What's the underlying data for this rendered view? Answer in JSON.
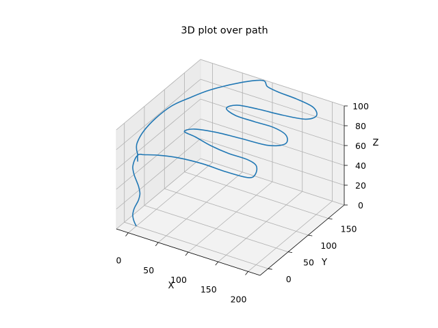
{
  "chart_data": {
    "type": "line",
    "title": "3D plot over path",
    "xlabel": "X",
    "ylabel": "Y",
    "zlabel": "Z",
    "xlim": [
      -20,
      220
    ],
    "ylim": [
      -20,
      190
    ],
    "zlim": [
      0,
      100
    ],
    "x_ticks": [
      0,
      50,
      100,
      150,
      200
    ],
    "y_ticks": [
      0,
      50,
      100,
      150
    ],
    "z_ticks": [
      0,
      20,
      40,
      60,
      80,
      100
    ],
    "grid": true,
    "series": [
      {
        "color": "#1f77b4",
        "points": [
          [
            0,
            0,
            0
          ],
          [
            -3,
            0,
            3
          ],
          [
            -5,
            0,
            6
          ],
          [
            -6,
            0,
            10
          ],
          [
            -5,
            0,
            14
          ],
          [
            -3,
            0,
            18
          ],
          [
            0,
            0,
            22
          ],
          [
            3,
            0,
            26
          ],
          [
            5,
            0,
            30
          ],
          [
            6,
            0,
            34
          ],
          [
            5,
            0,
            38
          ],
          [
            3,
            0,
            42
          ],
          [
            0,
            0,
            46
          ],
          [
            -3,
            0,
            50
          ],
          [
            -5,
            0,
            54
          ],
          [
            -6,
            0,
            58
          ],
          [
            -5,
            0,
            62
          ],
          [
            -3,
            0,
            66
          ],
          [
            0,
            0,
            70
          ],
          [
            4,
            0,
            73
          ],
          [
            8,
            0,
            74
          ],
          [
            10,
            3,
            73
          ],
          [
            30,
            10,
            74
          ],
          [
            60,
            14,
            76
          ],
          [
            100,
            16,
            77
          ],
          [
            140,
            15,
            77
          ],
          [
            175,
            18,
            77
          ],
          [
            180,
            28,
            78
          ],
          [
            170,
            45,
            79
          ],
          [
            150,
            52,
            79
          ],
          [
            120,
            50,
            80
          ],
          [
            90,
            52,
            81
          ],
          [
            60,
            58,
            82
          ],
          [
            40,
            60,
            83
          ],
          [
            50,
            70,
            84
          ],
          [
            80,
            78,
            84
          ],
          [
            120,
            80,
            85
          ],
          [
            165,
            82,
            86
          ],
          [
            185,
            95,
            87
          ],
          [
            175,
            112,
            88
          ],
          [
            150,
            118,
            89
          ],
          [
            120,
            115,
            90
          ],
          [
            90,
            113,
            91
          ],
          [
            70,
            120,
            92
          ],
          [
            80,
            132,
            93
          ],
          [
            110,
            138,
            93
          ],
          [
            150,
            140,
            94
          ],
          [
            185,
            145,
            95
          ],
          [
            195,
            158,
            96
          ],
          [
            180,
            172,
            97
          ],
          [
            150,
            176,
            98
          ],
          [
            120,
            176,
            99
          ],
          [
            100,
            178,
            100
          ],
          [
            85,
            188,
            100
          ],
          [
            60,
            170,
            99
          ],
          [
            30,
            140,
            96
          ],
          [
            10,
            115,
            92
          ],
          [
            -5,
            95,
            88
          ],
          [
            -15,
            70,
            82
          ],
          [
            -18,
            45,
            77
          ],
          [
            -12,
            20,
            75
          ],
          [
            -5,
            8,
            74
          ],
          [
            0,
            3,
            72
          ],
          [
            2,
            0,
            70
          ],
          [
            3,
            -1,
            66
          ]
        ]
      }
    ]
  }
}
